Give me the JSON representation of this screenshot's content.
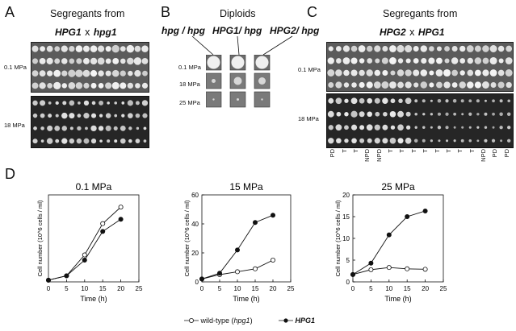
{
  "panels": {
    "A": {
      "letter": "A",
      "heading": "Segregants from",
      "cross_left": "HPG1",
      "cross_sep": "x",
      "cross_right": "hpg1",
      "rows": [
        "0.1 MPa",
        "18 MPa"
      ]
    },
    "B": {
      "letter": "B",
      "heading": "Diploids",
      "genotypes": [
        "hpg / hpg",
        "HPG1/ hpg",
        "HPG2/ hpg"
      ],
      "rows": [
        "0.1 MPa",
        "18 MPa",
        "25 MPa"
      ]
    },
    "C": {
      "letter": "C",
      "heading": "Segregants from",
      "cross_left": "HPG2",
      "cross_sep": "x",
      "cross_right": "HPG1",
      "rows": [
        "0.1 MPa",
        "18 MPa"
      ],
      "tetrad_types": [
        "PD",
        "T",
        "T",
        "NPD",
        "NPD",
        "T",
        "T",
        "T",
        "T",
        "T",
        "T",
        "T",
        "T",
        "NPD",
        "PD",
        "PD"
      ]
    },
    "D": {
      "letter": "D"
    }
  },
  "legend": {
    "wild_type": "wild-type (",
    "wild_type_italic": "hpg1",
    "wild_type_close": ")",
    "hpg1_label": "HPG1"
  },
  "chart_data": [
    {
      "type": "line",
      "title": "0.1 MPa",
      "xlabel": "Time (h)",
      "ylabel": "Cell number (10^6 cells / ml)",
      "xlim": [
        0,
        25
      ],
      "ylim": [
        0,
        100
      ],
      "xticks": [
        0,
        5,
        10,
        15,
        20,
        25
      ],
      "yticks": [],
      "series": [
        {
          "name": "wild-type (hpg1)",
          "marker": "open",
          "x": [
            0,
            5,
            10,
            15,
            20
          ],
          "y": [
            2,
            7,
            31,
            67,
            86
          ]
        },
        {
          "name": "HPG1",
          "marker": "filled",
          "x": [
            0,
            5,
            10,
            15,
            20
          ],
          "y": [
            2,
            7,
            25,
            58,
            72
          ]
        }
      ]
    },
    {
      "type": "line",
      "title": "15 MPa",
      "xlabel": "Time (h)",
      "ylabel": "Cell number (10^6 cells / ml)",
      "xlim": [
        0,
        25
      ],
      "ylim": [
        0,
        60
      ],
      "xticks": [
        0,
        5,
        10,
        15,
        20,
        25
      ],
      "yticks": [
        0,
        20,
        40,
        60
      ],
      "series": [
        {
          "name": "wild-type (hpg1)",
          "marker": "open",
          "x": [
            0,
            5,
            10,
            15,
            20
          ],
          "y": [
            2,
            5,
            7,
            9,
            15
          ]
        },
        {
          "name": "HPG1",
          "marker": "filled",
          "x": [
            0,
            5,
            10,
            15,
            20
          ],
          "y": [
            2,
            6,
            22,
            41,
            46
          ]
        }
      ]
    },
    {
      "type": "line",
      "title": "25 MPa",
      "xlabel": "Time (h)",
      "ylabel": "Cell number (10^6 cells / ml)",
      "xlim": [
        0,
        25
      ],
      "ylim": [
        0,
        20
      ],
      "xticks": [
        0,
        5,
        10,
        15,
        20,
        25
      ],
      "yticks": [
        0,
        5,
        10,
        15,
        20
      ],
      "series": [
        {
          "name": "wild-type (hpg1)",
          "marker": "open",
          "x": [
            0,
            5,
            10,
            15,
            20
          ],
          "y": [
            1.7,
            2.8,
            3.3,
            3.0,
            2.9
          ]
        },
        {
          "name": "HPG1",
          "marker": "filled",
          "x": [
            0,
            5,
            10,
            15,
            20
          ],
          "y": [
            1.7,
            4.3,
            10.8,
            15.0,
            16.3
          ]
        }
      ]
    }
  ]
}
